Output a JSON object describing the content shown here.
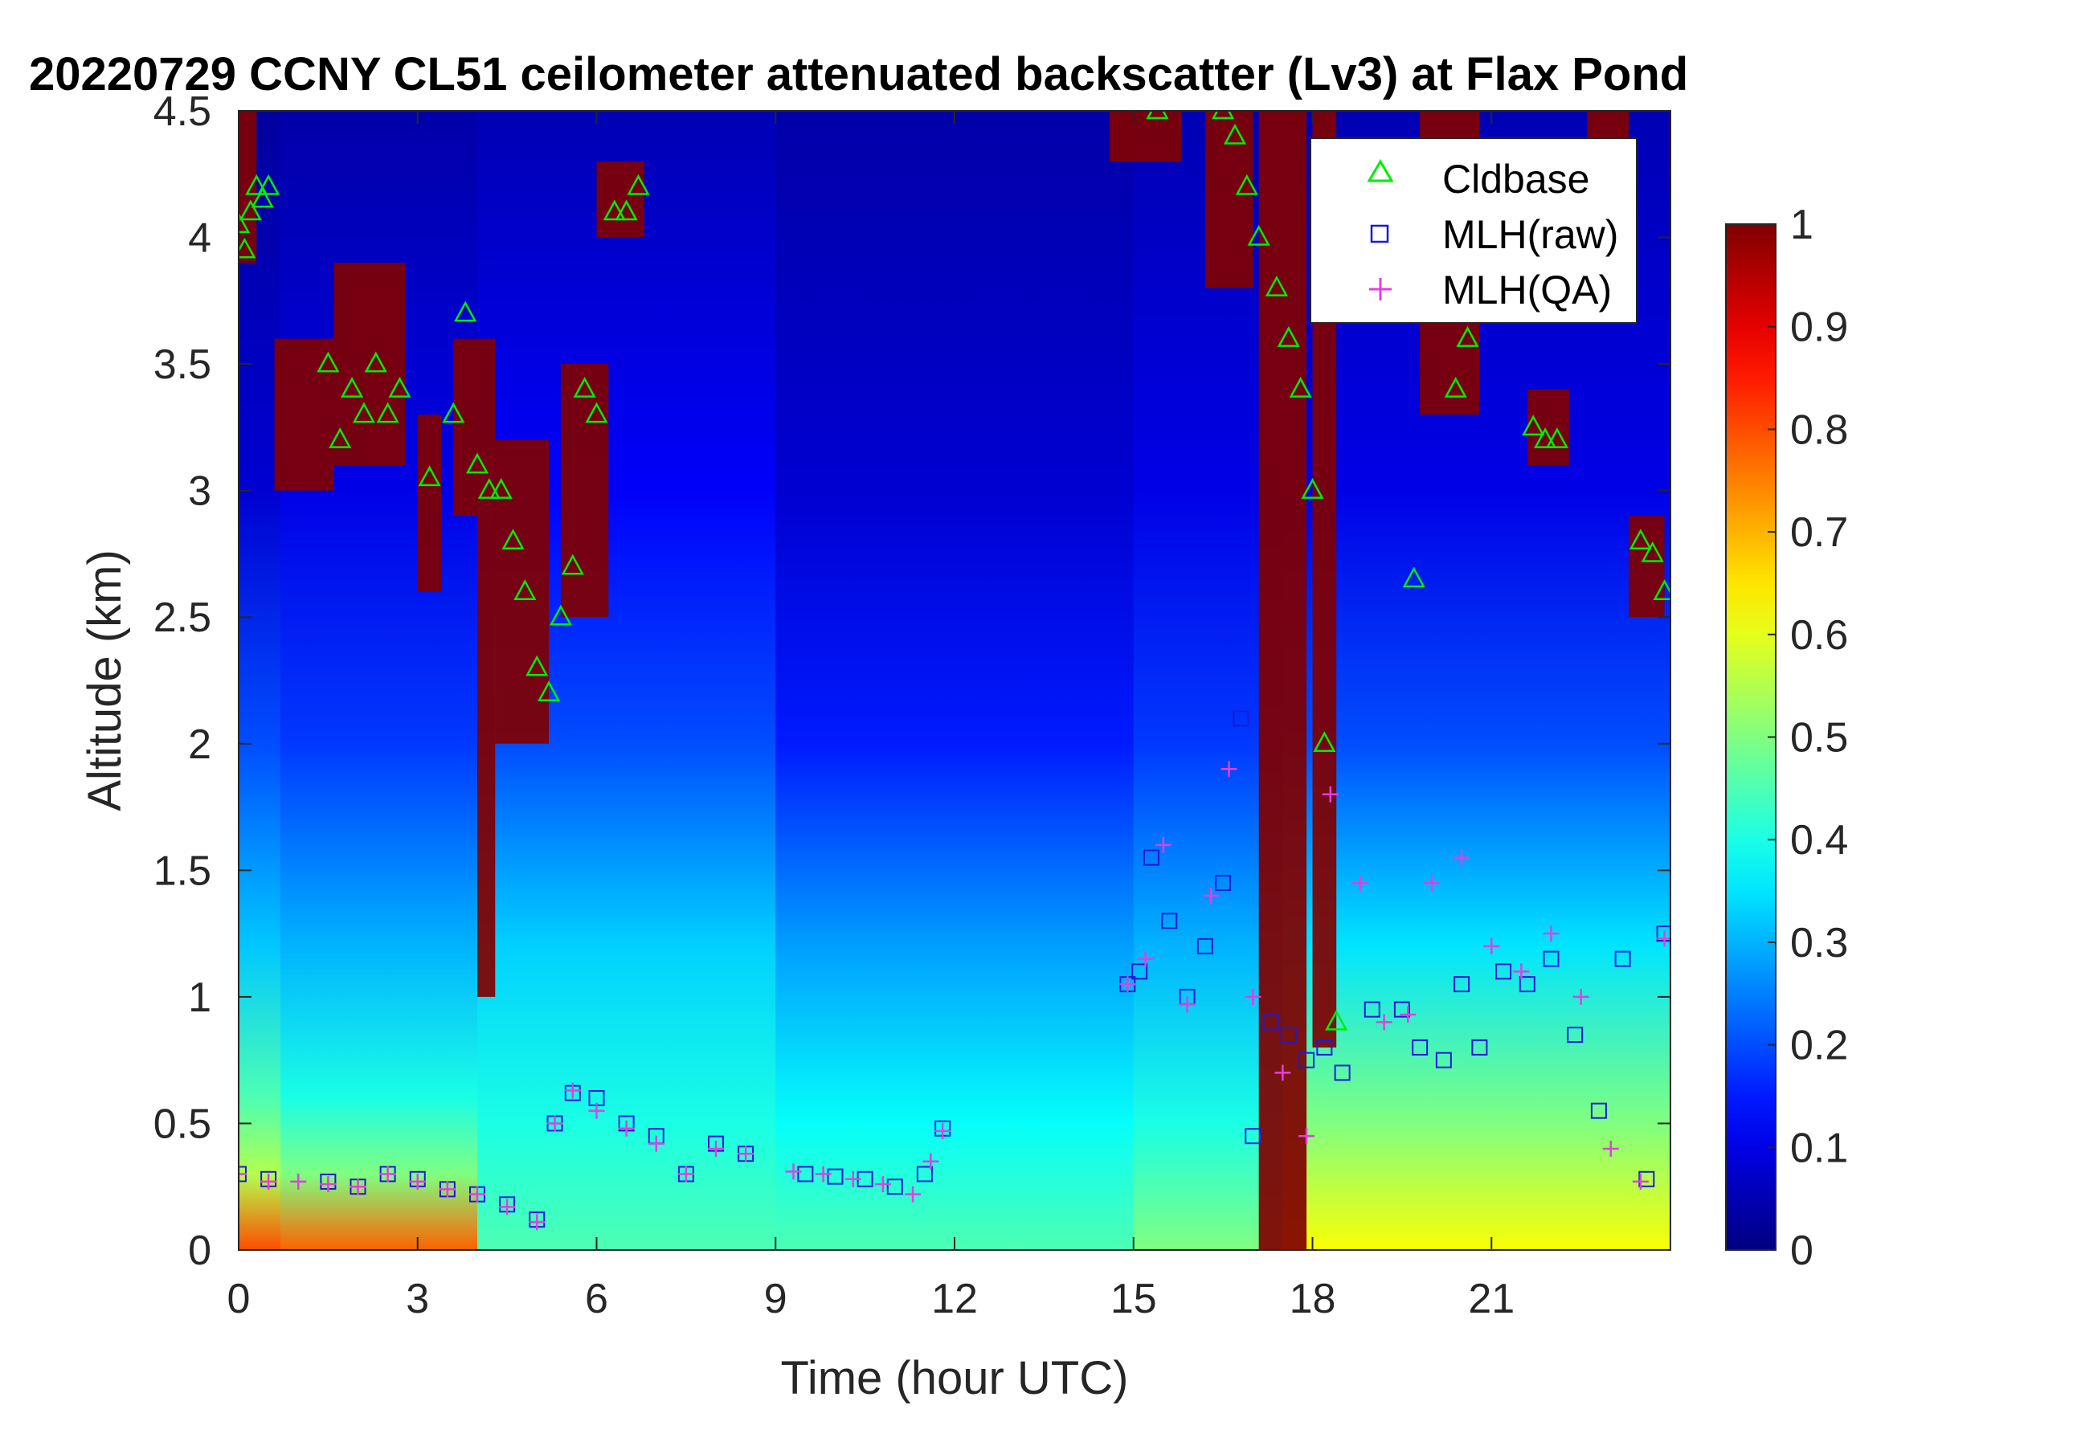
{
  "chart_data": {
    "type": "heatmap",
    "title": "20220729 CCNY CL51 ceilometer attenuated backscatter (Lv3) at Flax Pond",
    "xlabel": "Time (hour UTC)",
    "ylabel": "Altitude (km)",
    "xlim": [
      0,
      24
    ],
    "ylim": [
      0,
      4.5
    ],
    "x_ticks": [
      0,
      3,
      6,
      9,
      12,
      15,
      18,
      21
    ],
    "x_tick_labels": [
      "0",
      "3",
      "6",
      "9",
      "12",
      "15",
      "18",
      "21"
    ],
    "y_ticks": [
      0,
      0.5,
      1,
      1.5,
      2,
      2.5,
      3,
      3.5,
      4,
      4.5
    ],
    "y_tick_labels": [
      "0",
      "0.5",
      "1",
      "1.5",
      "2",
      "2.5",
      "3",
      "3.5",
      "4",
      "4.5"
    ],
    "colorbar": {
      "colormap": "jet",
      "clim": [
        0,
        1
      ],
      "ticks": [
        0,
        0.1,
        0.2,
        0.3,
        0.4,
        0.5,
        0.6,
        0.7,
        0.8,
        0.9,
        1
      ],
      "tick_labels": [
        "0",
        "0.1",
        "0.2",
        "0.3",
        "0.4",
        "0.5",
        "0.6",
        "0.7",
        "0.8",
        "0.9",
        "1"
      ]
    },
    "legend": {
      "placement": "top-right",
      "entries": [
        {
          "label": "Cldbase",
          "marker": "triangle",
          "color": "#00ee00"
        },
        {
          "label": "MLH(raw)",
          "marker": "square",
          "color": "#1a1adb"
        },
        {
          "label": "MLH(QA)",
          "marker": "plus",
          "color": "#e040e0"
        }
      ]
    },
    "backscatter_profile": {
      "description_of_values": "approximate normalized attenuated backscatter vs altitude (km) by time segment",
      "segments": [
        {
          "t_start": 0,
          "t_end": 0.7,
          "levels": [
            [
              0,
              0.8
            ],
            [
              0.3,
              0.55
            ],
            [
              0.6,
              0.45
            ],
            [
              1.2,
              0.32
            ],
            [
              2.0,
              0.2
            ],
            [
              3.0,
              0.08
            ],
            [
              4.5,
              0.03
            ]
          ]
        },
        {
          "t_start": 0.7,
          "t_end": 4,
          "levels": [
            [
              0,
              0.78
            ],
            [
              0.3,
              0.5
            ],
            [
              0.6,
              0.4
            ],
            [
              1.2,
              0.3
            ],
            [
              2.0,
              0.18
            ],
            [
              3.0,
              0.1
            ],
            [
              4.5,
              0.04
            ]
          ]
        },
        {
          "t_start": 4,
          "t_end": 9,
          "levels": [
            [
              0,
              0.45
            ],
            [
              0.5,
              0.4
            ],
            [
              1.2,
              0.33
            ],
            [
              2.0,
              0.2
            ],
            [
              3.0,
              0.12
            ],
            [
              4.5,
              0.05
            ]
          ]
        },
        {
          "t_start": 9,
          "t_end": 15,
          "levels": [
            [
              0,
              0.45
            ],
            [
              0.5,
              0.38
            ],
            [
              1.2,
              0.28
            ],
            [
              2.0,
              0.15
            ],
            [
              3.0,
              0.08
            ],
            [
              4.5,
              0.04
            ]
          ]
        },
        {
          "t_start": 15,
          "t_end": 17.5,
          "levels": [
            [
              0,
              0.5
            ],
            [
              0.5,
              0.4
            ],
            [
              1.2,
              0.3
            ],
            [
              2.0,
              0.18
            ],
            [
              3.0,
              0.1
            ],
            [
              4.5,
              0.05
            ]
          ]
        },
        {
          "t_start": 17.5,
          "t_end": 24,
          "levels": [
            [
              0,
              0.62
            ],
            [
              0.5,
              0.5
            ],
            [
              1.2,
              0.35
            ],
            [
              2.0,
              0.2
            ],
            [
              3.0,
              0.1
            ],
            [
              4.5,
              0.05
            ]
          ]
        }
      ]
    },
    "cloud_layers": [
      {
        "t_start": 0.0,
        "t_end": 0.3,
        "base": 3.9,
        "top": 4.5
      },
      {
        "t_start": 0.6,
        "t_end": 1.6,
        "base": 3.0,
        "top": 3.6
      },
      {
        "t_start": 1.6,
        "t_end": 2.8,
        "base": 3.1,
        "top": 3.9
      },
      {
        "t_start": 3.0,
        "t_end": 3.4,
        "base": 2.6,
        "top": 3.3
      },
      {
        "t_start": 3.6,
        "t_end": 4.0,
        "base": 2.9,
        "top": 3.6
      },
      {
        "t_start": 4.0,
        "t_end": 4.3,
        "base": 1.0,
        "top": 3.6
      },
      {
        "t_start": 4.3,
        "t_end": 5.2,
        "base": 2.0,
        "top": 3.2
      },
      {
        "t_start": 5.4,
        "t_end": 6.2,
        "base": 2.5,
        "top": 3.5
      },
      {
        "t_start": 6.0,
        "t_end": 6.8,
        "base": 4.0,
        "top": 4.3
      },
      {
        "t_start": 14.6,
        "t_end": 15.8,
        "base": 4.3,
        "top": 4.5
      },
      {
        "t_start": 16.2,
        "t_end": 17.0,
        "base": 3.8,
        "top": 4.5
      },
      {
        "t_start": 17.1,
        "t_end": 17.9,
        "base": 0.0,
        "top": 4.5
      },
      {
        "t_start": 18.0,
        "t_end": 18.4,
        "base": 0.8,
        "top": 4.5
      },
      {
        "t_start": 19.8,
        "t_end": 20.8,
        "base": 3.3,
        "top": 4.5
      },
      {
        "t_start": 21.6,
        "t_end": 22.3,
        "base": 3.1,
        "top": 3.4
      },
      {
        "t_start": 22.6,
        "t_end": 23.3,
        "base": 4.1,
        "top": 4.5
      },
      {
        "t_start": 23.3,
        "t_end": 23.9,
        "base": 2.5,
        "top": 2.9
      }
    ],
    "series": [
      {
        "name": "Cldbase",
        "x": [
          0.0,
          0.1,
          0.2,
          0.3,
          0.4,
          0.5,
          1.5,
          1.7,
          1.9,
          2.1,
          2.3,
          2.5,
          2.7,
          3.2,
          3.6,
          3.8,
          4.0,
          4.2,
          4.4,
          4.6,
          4.8,
          5.0,
          5.2,
          5.4,
          5.6,
          5.8,
          6.0,
          6.3,
          6.5,
          6.7,
          15.4,
          16.5,
          16.7,
          16.9,
          17.1,
          17.4,
          17.6,
          17.8,
          18.0,
          18.2,
          18.4,
          19.7,
          20.4,
          20.6,
          21.7,
          21.9,
          22.1,
          23.5,
          23.7,
          23.9
        ],
        "y": [
          4.05,
          3.95,
          4.1,
          4.2,
          4.15,
          4.2,
          3.5,
          3.2,
          3.4,
          3.3,
          3.5,
          3.3,
          3.4,
          3.05,
          3.3,
          3.7,
          3.1,
          3.0,
          3.0,
          2.8,
          2.6,
          2.3,
          2.2,
          2.5,
          2.7,
          3.4,
          3.3,
          4.1,
          4.1,
          4.2,
          4.5,
          4.5,
          4.4,
          4.2,
          4.0,
          3.8,
          3.6,
          3.4,
          3.0,
          2.0,
          0.9,
          2.65,
          3.4,
          3.6,
          3.25,
          3.2,
          3.2,
          2.8,
          2.75,
          2.6
        ]
      },
      {
        "name": "MLH(raw)",
        "x": [
          0.0,
          0.5,
          1.5,
          2.0,
          2.5,
          3.0,
          3.5,
          4.0,
          4.5,
          5.0,
          5.3,
          5.6,
          6.0,
          6.5,
          7.0,
          7.5,
          8.0,
          8.5,
          9.5,
          10.0,
          10.5,
          11.0,
          11.5,
          11.8,
          14.9,
          15.1,
          15.3,
          15.6,
          15.9,
          16.2,
          16.5,
          16.8,
          17.0,
          17.3,
          17.6,
          17.9,
          18.2,
          18.5,
          19.0,
          19.5,
          19.8,
          20.2,
          20.5,
          20.8,
          21.2,
          21.6,
          22.0,
          22.4,
          22.8,
          23.2,
          23.6,
          23.9
        ],
        "y": [
          0.3,
          0.28,
          0.27,
          0.25,
          0.3,
          0.28,
          0.24,
          0.22,
          0.18,
          0.12,
          0.5,
          0.62,
          0.6,
          0.5,
          0.45,
          0.3,
          0.42,
          0.38,
          0.3,
          0.29,
          0.28,
          0.25,
          0.3,
          0.48,
          1.05,
          1.1,
          1.55,
          1.3,
          1.0,
          1.2,
          1.45,
          2.1,
          0.45,
          0.9,
          0.85,
          0.75,
          0.8,
          0.7,
          0.95,
          0.95,
          0.8,
          0.75,
          1.05,
          0.8,
          1.1,
          1.05,
          1.15,
          0.85,
          0.55,
          1.15,
          0.28,
          1.25
        ]
      },
      {
        "name": "MLH(QA)",
        "x": [
          0.0,
          0.5,
          1.0,
          1.5,
          2.0,
          2.5,
          3.0,
          3.5,
          4.0,
          4.5,
          5.0,
          5.3,
          5.6,
          6.0,
          6.5,
          7.0,
          7.5,
          8.0,
          8.5,
          9.3,
          9.8,
          10.3,
          10.8,
          11.3,
          11.6,
          11.8,
          14.9,
          15.2,
          15.5,
          15.9,
          16.3,
          16.6,
          17.0,
          17.5,
          17.9,
          18.3,
          18.8,
          19.2,
          19.6,
          20.0,
          20.5,
          21.0,
          21.5,
          22.0,
          22.5,
          23.0,
          23.5,
          23.9
        ],
        "y": [
          0.3,
          0.27,
          0.27,
          0.26,
          0.25,
          0.3,
          0.27,
          0.24,
          0.22,
          0.17,
          0.11,
          0.5,
          0.63,
          0.55,
          0.48,
          0.42,
          0.3,
          0.4,
          0.38,
          0.31,
          0.3,
          0.28,
          0.26,
          0.22,
          0.35,
          0.47,
          1.05,
          1.15,
          1.6,
          0.97,
          1.4,
          1.9,
          1.0,
          0.7,
          0.45,
          1.8,
          1.45,
          0.9,
          0.93,
          1.45,
          1.55,
          1.2,
          1.1,
          1.25,
          1.0,
          0.4,
          0.27,
          1.23
        ]
      }
    ]
  }
}
